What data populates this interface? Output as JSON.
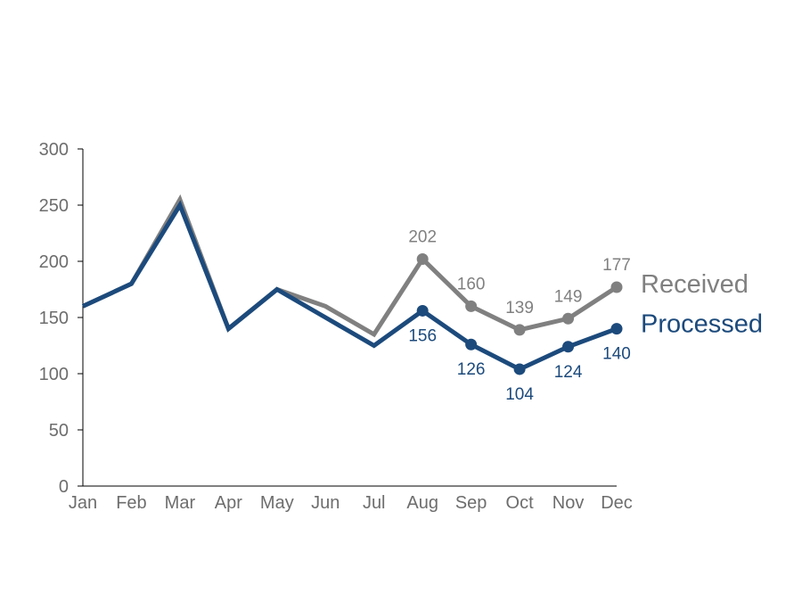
{
  "chart_data": {
    "type": "line",
    "categories": [
      "Jan",
      "Feb",
      "Mar",
      "Apr",
      "May",
      "Jun",
      "Jul",
      "Aug",
      "Sep",
      "Oct",
      "Nov",
      "Dec"
    ],
    "ylim": [
      0,
      300
    ],
    "yticks": [
      0,
      50,
      100,
      150,
      200,
      250,
      300
    ],
    "grid": false,
    "legend_placement": "right, at line ends",
    "series": [
      {
        "name": "Received",
        "color": "#808080",
        "values": [
          160,
          180,
          255,
          140,
          175,
          160,
          135,
          202,
          160,
          139,
          149,
          177
        ],
        "labeled_from_index": 7
      },
      {
        "name": "Processed",
        "color": "#1c4a7c",
        "values": [
          160,
          180,
          250,
          140,
          175,
          150,
          125,
          156,
          126,
          104,
          124,
          140
        ],
        "labeled_from_index": 7
      }
    ]
  },
  "colors": {
    "axis": "#000000",
    "tick_text": "#6d6d6d"
  }
}
